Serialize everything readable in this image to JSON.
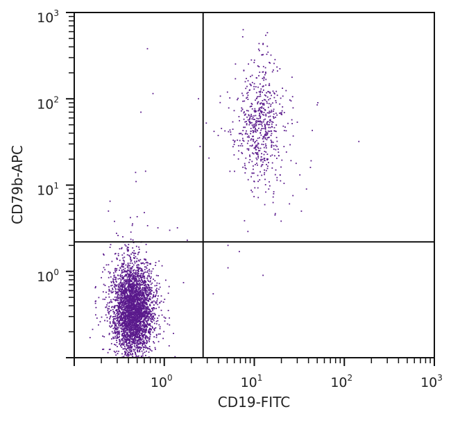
{
  "chart_data": {
    "type": "scatter",
    "title": "",
    "xlabel": "CD19-FITC",
    "ylabel": "CD79b-APC",
    "x_scale": "log",
    "y_scale": "log",
    "xlim": [
      0.1,
      1000
    ],
    "ylim": [
      0.1,
      1000
    ],
    "x_ticks": [
      {
        "base": "10",
        "exp": "0",
        "value": 1
      },
      {
        "base": "10",
        "exp": "1",
        "value": 10
      },
      {
        "base": "10",
        "exp": "2",
        "value": 100
      },
      {
        "base": "10",
        "exp": "3",
        "value": 1000
      }
    ],
    "y_ticks": [
      {
        "base": "10",
        "exp": "0",
        "value": 1
      },
      {
        "base": "10",
        "exp": "1",
        "value": 10
      },
      {
        "base": "10",
        "exp": "2",
        "value": 100
      },
      {
        "base": "10",
        "exp": "3",
        "value": 1000
      }
    ],
    "grid": false,
    "quadrant_gates": {
      "x": 2.7,
      "y": 2.2
    },
    "point_color": "#5a1a8c",
    "populations": [
      {
        "x_center": 0.45,
        "y_center": 0.36,
        "x_spread_decades": 0.11,
        "y_spread_decades": 0.26,
        "count": 3400
      },
      {
        "x_center": 11.5,
        "y_center": 50,
        "x_spread_decades": 0.14,
        "y_spread_decades": 0.36,
        "count": 620
      }
    ],
    "outliers": [
      [
        0.65,
        380
      ],
      [
        0.75,
        115
      ],
      [
        0.55,
        70
      ],
      [
        2.4,
        100
      ],
      [
        2.5,
        28
      ],
      [
        0.48,
        14
      ],
      [
        0.62,
        14.5
      ],
      [
        0.25,
        6.5
      ],
      [
        0.24,
        5
      ],
      [
        0.28,
        3.8
      ],
      [
        0.42,
        4.2
      ],
      [
        0.5,
        4.3
      ],
      [
        0.6,
        4.8
      ],
      [
        0.85,
        3.2
      ],
      [
        1.15,
        3.0
      ],
      [
        1.4,
        3.2
      ],
      [
        1.8,
        2.3
      ],
      [
        5.1,
        2.0
      ],
      [
        5.1,
        1.1
      ],
      [
        12.5,
        0.9
      ],
      [
        3.5,
        0.55
      ],
      [
        145,
        32
      ],
      [
        42,
        16
      ],
      [
        38,
        9
      ],
      [
        8.5,
        2.9
      ],
      [
        17,
        4.5
      ],
      [
        50,
        85
      ]
    ]
  }
}
